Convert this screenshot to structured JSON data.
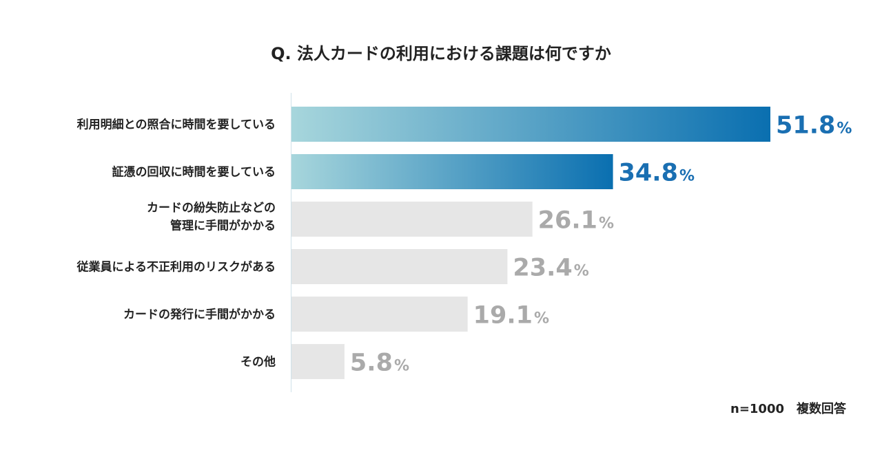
{
  "chart_data": {
    "type": "bar",
    "orientation": "horizontal",
    "title": "Q. 法人カードの利用における課題は何ですか",
    "categories": [
      [
        "利用明細との照合に時間を要している"
      ],
      [
        "証憑の回収に時間を要している"
      ],
      [
        "カードの紛失防止などの",
        "管理に手間がかかる"
      ],
      [
        "従業員による不正利用のリスクがある"
      ],
      [
        "カードの発行に手間がかかる"
      ],
      [
        "その他"
      ]
    ],
    "values": [
      51.8,
      34.8,
      26.1,
      23.4,
      19.1,
      5.8
    ],
    "value_labels": [
      "51.8",
      "34.8",
      "26.1",
      "23.4",
      "19.1",
      "5.8"
    ],
    "unit": "%",
    "highlighted_count": 2,
    "xlim": [
      0,
      51.8
    ],
    "grid": false,
    "legend": "none"
  },
  "colors": {
    "highlight_gradient_start": "#a7d6dc",
    "highlight_gradient_end": "#0a6fb0",
    "highlight_text": "#1a6fb2",
    "muted_bar": "#e6e6e6",
    "muted_text": "#aaaaaa",
    "axis": "#cfe2ea"
  },
  "footnote": "n=1000　複数回答"
}
